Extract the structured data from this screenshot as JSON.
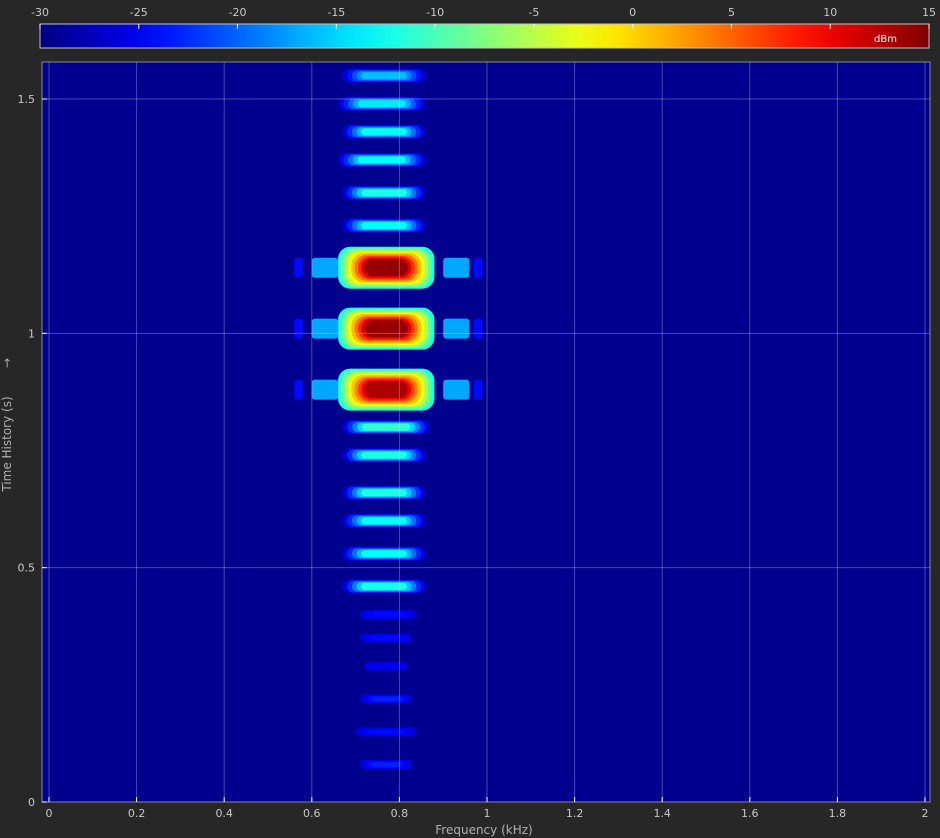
{
  "chart_data": {
    "type": "heatmap",
    "title": "",
    "xlabel": "Frequency (kHz)",
    "ylabel": "Time History (s)",
    "ylabel_arrow": "→",
    "xlim": [
      0,
      2
    ],
    "ylim": [
      0,
      1.6
    ],
    "xticks": [
      "0",
      "0.2",
      "0.4",
      "0.6",
      "0.8",
      "1",
      "1.2",
      "1.4",
      "1.6",
      "1.8",
      "2"
    ],
    "yticks": [
      "0",
      "0.5",
      "1",
      "1.5"
    ],
    "colorbar": {
      "range": [
        -30,
        15
      ],
      "ticks": [
        "-30",
        "-25",
        "-20",
        "-15",
        "-10",
        "-5",
        "0",
        "5",
        "10",
        "15"
      ],
      "unit": "dBm",
      "colormap": "jet"
    },
    "grid": true,
    "background_level_dBm": -29,
    "center_frequency_kHz": 0.78,
    "bursts": [
      {
        "t": 1.55,
        "f0": 0.67,
        "f1": 0.86,
        "level": -16
      },
      {
        "t": 1.49,
        "f0": 0.66,
        "f1": 0.86,
        "level": -14
      },
      {
        "t": 1.43,
        "f0": 0.67,
        "f1": 0.86,
        "level": -13
      },
      {
        "t": 1.37,
        "f0": 0.66,
        "f1": 0.86,
        "level": -13
      },
      {
        "t": 1.3,
        "f0": 0.67,
        "f1": 0.86,
        "level": -12
      },
      {
        "t": 1.23,
        "f0": 0.67,
        "f1": 0.86,
        "level": -13
      },
      {
        "t": 1.14,
        "f0": 0.55,
        "f1": 1.0,
        "level": 14
      },
      {
        "t": 1.01,
        "f0": 0.55,
        "f1": 1.0,
        "level": 14
      },
      {
        "t": 0.88,
        "f0": 0.55,
        "f1": 1.0,
        "level": 13
      },
      {
        "t": 0.8,
        "f0": 0.67,
        "f1": 0.87,
        "level": -11
      },
      {
        "t": 0.74,
        "f0": 0.67,
        "f1": 0.86,
        "level": -12
      },
      {
        "t": 0.66,
        "f0": 0.67,
        "f1": 0.86,
        "level": -12
      },
      {
        "t": 0.6,
        "f0": 0.67,
        "f1": 0.86,
        "level": -13
      },
      {
        "t": 0.53,
        "f0": 0.67,
        "f1": 0.86,
        "level": -13
      },
      {
        "t": 0.46,
        "f0": 0.67,
        "f1": 0.86,
        "level": -12
      },
      {
        "t": 0.4,
        "f0": 0.71,
        "f1": 0.84,
        "level": -24
      },
      {
        "t": 0.35,
        "f0": 0.71,
        "f1": 0.83,
        "level": -24
      },
      {
        "t": 0.29,
        "f0": 0.72,
        "f1": 0.82,
        "level": -25
      },
      {
        "t": 0.22,
        "f0": 0.71,
        "f1": 0.83,
        "level": -23
      },
      {
        "t": 0.15,
        "f0": 0.7,
        "f1": 0.84,
        "level": -24
      },
      {
        "t": 0.08,
        "f0": 0.71,
        "f1": 0.83,
        "level": -23
      }
    ]
  }
}
